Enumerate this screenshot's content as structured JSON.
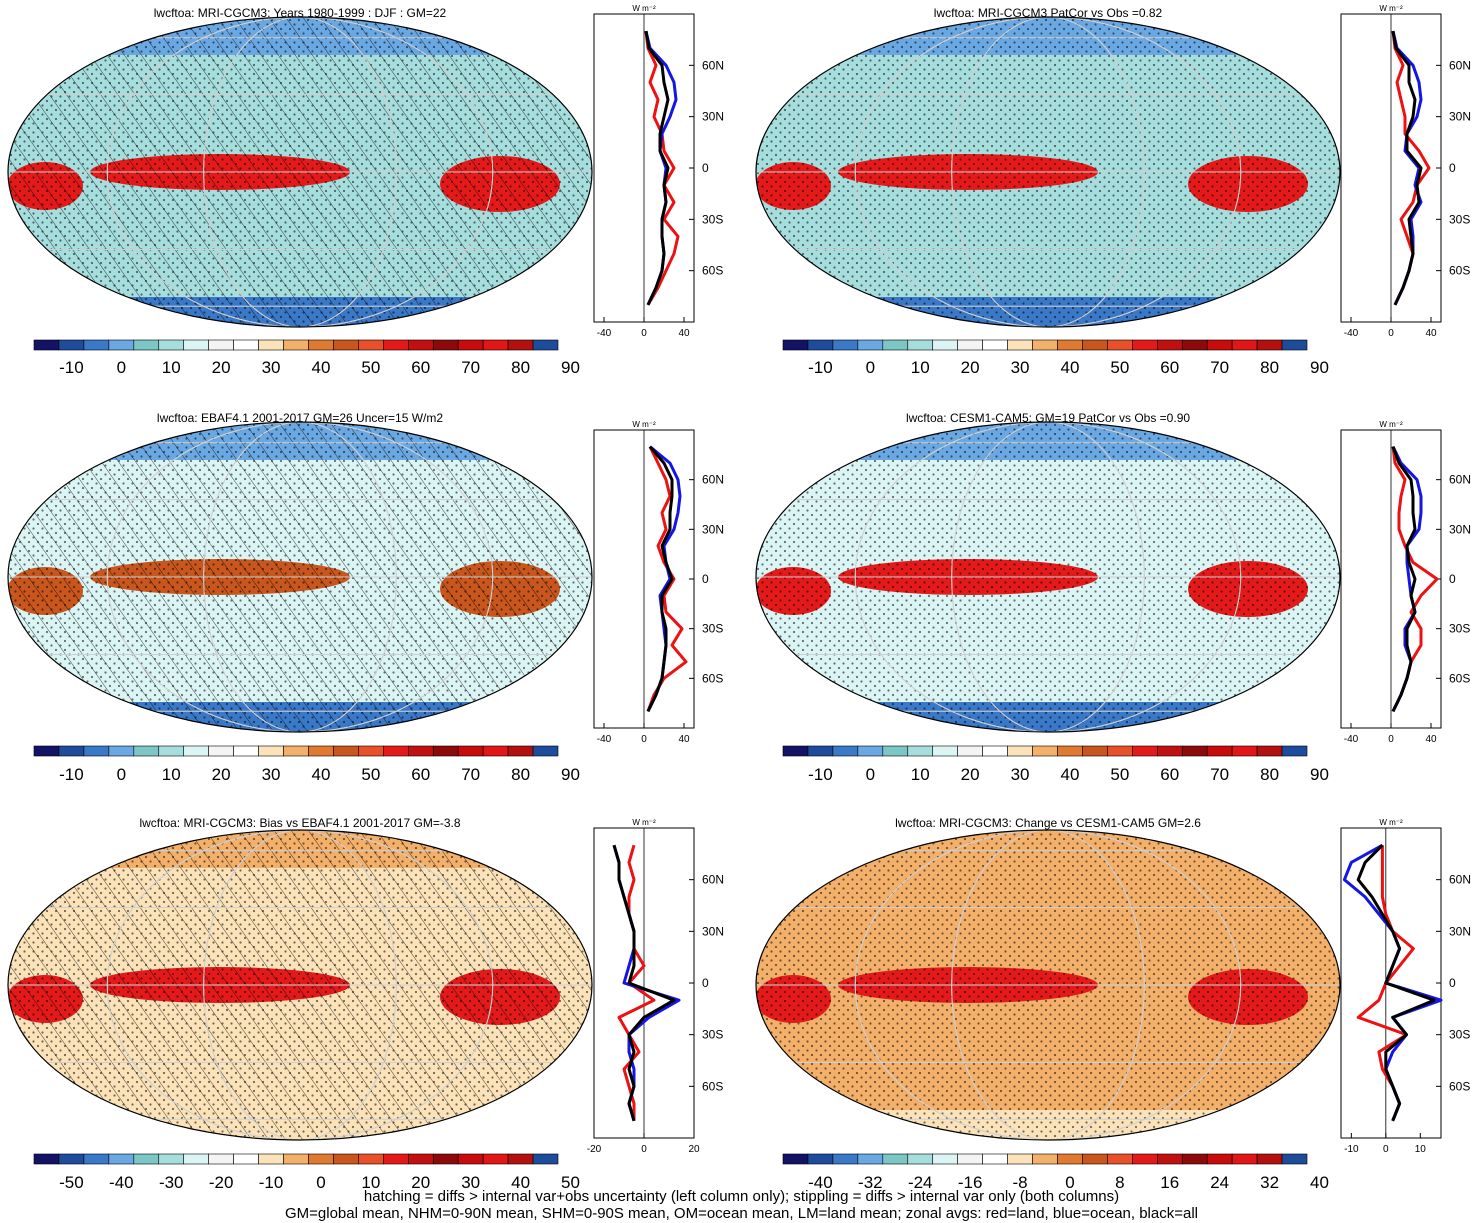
{
  "colors": {
    "fill_levels": [
      "#121266",
      "#1e4c9c",
      "#3a78c8",
      "#6aa8e4",
      "#7cc6c6",
      "#a6dede",
      "#dbf5f5",
      "#f4f4f4",
      "#ffffff",
      "#fbe2b8",
      "#f3b06a",
      "#e07a30",
      "#c9561c",
      "#e8502a",
      "#e41a1a",
      "#c21010",
      "#8e0a0a",
      "#c80c0c",
      "#e21616",
      "#b41010",
      "#1e4c9c"
    ],
    "zonal_land": "#ee1111",
    "zonal_ocean": "#1515e6",
    "zonal_all": "#000000"
  },
  "panels": [
    {
      "title": "lwcftoa: MRI-CGCM3: Years 1980-1999 : DJF : GM=22",
      "colorbar_ticks": [
        "-10",
        "0",
        "10",
        "20",
        "30",
        "40",
        "50",
        "60",
        "70",
        "80",
        "90"
      ],
      "zonal_xticks": [
        "-40",
        "0",
        "40"
      ],
      "zonal_xlim": [
        -50,
        50
      ]
    },
    {
      "title": "lwcftoa: MRI-CGCM3 PatCor vs Obs =0.82",
      "colorbar_ticks": [
        "-10",
        "0",
        "10",
        "20",
        "30",
        "40",
        "50",
        "60",
        "70",
        "80",
        "90"
      ],
      "zonal_xticks": [
        "-40",
        "0",
        "40"
      ],
      "zonal_xlim": [
        -50,
        50
      ]
    },
    {
      "title": "lwcftoa: EBAF4.1 2001-2017 GM=26 Uncer=15 W/m2",
      "colorbar_ticks": [
        "-10",
        "0",
        "10",
        "20",
        "30",
        "40",
        "50",
        "60",
        "70",
        "80",
        "90"
      ],
      "zonal_xticks": [
        "-40",
        "0",
        "40"
      ],
      "zonal_xlim": [
        -50,
        50
      ]
    },
    {
      "title": "lwcftoa: CESM1-CAM5: GM=19 PatCor vs Obs =0.90",
      "colorbar_ticks": [
        "-10",
        "0",
        "10",
        "20",
        "30",
        "40",
        "50",
        "60",
        "70",
        "80",
        "90"
      ],
      "zonal_xticks": [
        "-40",
        "0",
        "40"
      ],
      "zonal_xlim": [
        -50,
        50
      ]
    },
    {
      "title": "lwcftoa: MRI-CGCM3: Bias vs EBAF4.1 2001-2017 GM=-3.8",
      "colorbar_ticks": [
        "-50",
        "-40",
        "-30",
        "-20",
        "-10",
        "0",
        "10",
        "20",
        "30",
        "40",
        "50"
      ],
      "zonal_xticks": [
        "-20",
        "0",
        "20"
      ],
      "zonal_xlim": [
        -20,
        20
      ]
    },
    {
      "title": "lwcftoa: MRI-CGCM3: Change vs CESM1-CAM5 GM=2.6",
      "colorbar_ticks": [
        "-40",
        "-32",
        "-24",
        "-16",
        "-8",
        "0",
        "8",
        "16",
        "24",
        "32",
        "40"
      ],
      "zonal_xticks": [
        "-10",
        "0",
        "10"
      ],
      "zonal_xlim": [
        -13,
        16
      ]
    }
  ],
  "zonal_unit": "W m⁻²",
  "lat_ticks": [
    "60N",
    "30N",
    "0",
    "30S",
    "60S"
  ],
  "chart_data": [
    {
      "type": "line",
      "x_label": "W m-2",
      "y_ticks": [
        "60N",
        "30N",
        "0",
        "30S",
        "60S"
      ],
      "series": [
        {
          "name": "red=land",
          "lat": [
            80,
            70,
            60,
            50,
            40,
            30,
            20,
            10,
            0,
            -10,
            -20,
            -30,
            -40,
            -50,
            -60,
            -70,
            -80
          ],
          "values": [
            2,
            4,
            12,
            6,
            14,
            10,
            18,
            20,
            30,
            20,
            30,
            20,
            34,
            30,
            22,
            14,
            4
          ]
        },
        {
          "name": "blue=ocean",
          "lat": [
            80,
            70,
            60,
            50,
            40,
            30,
            20,
            10,
            0,
            -10,
            -20,
            -30,
            -40,
            -50,
            -60,
            -70,
            -80
          ],
          "values": [
            2,
            6,
            22,
            30,
            32,
            26,
            18,
            16,
            22,
            20,
            22,
            18,
            18,
            20,
            18,
            12,
            4
          ]
        },
        {
          "name": "black=all",
          "lat": [
            80,
            70,
            60,
            50,
            40,
            30,
            20,
            10,
            0,
            -10,
            -20,
            -30,
            -40,
            -50,
            -60,
            -70,
            -80
          ],
          "values": [
            2,
            5,
            18,
            20,
            24,
            20,
            16,
            16,
            24,
            20,
            22,
            18,
            18,
            20,
            18,
            12,
            4
          ]
        }
      ]
    },
    {
      "type": "line",
      "x_label": "W m-2",
      "y_ticks": [
        "60N",
        "30N",
        "0",
        "30S",
        "60S"
      ],
      "series": [
        {
          "name": "red=land",
          "lat": [
            80,
            70,
            60,
            50,
            40,
            30,
            20,
            10,
            0,
            -10,
            -20,
            -30,
            -40,
            -50,
            -60,
            -70,
            -80
          ],
          "values": [
            2,
            4,
            12,
            6,
            10,
            14,
            14,
            28,
            38,
            26,
            22,
            10,
            16,
            22,
            18,
            12,
            4
          ]
        },
        {
          "name": "blue=ocean",
          "lat": [
            80,
            70,
            60,
            50,
            40,
            30,
            20,
            10,
            0,
            -10,
            -20,
            -30,
            -40,
            -50,
            -60,
            -70,
            -80
          ],
          "values": [
            2,
            6,
            22,
            28,
            30,
            26,
            16,
            14,
            28,
            24,
            30,
            20,
            22,
            22,
            18,
            12,
            4
          ]
        },
        {
          "name": "black=all",
          "lat": [
            80,
            70,
            60,
            50,
            40,
            30,
            20,
            10,
            0,
            -10,
            -20,
            -30,
            -40,
            -50,
            -60,
            -70,
            -80
          ],
          "values": [
            2,
            5,
            18,
            18,
            24,
            22,
            16,
            16,
            30,
            26,
            28,
            18,
            20,
            22,
            18,
            12,
            4
          ]
        }
      ]
    },
    {
      "type": "line",
      "x_label": "W m-2",
      "y_ticks": [
        "60N",
        "30N",
        "0",
        "30S",
        "60S"
      ],
      "series": [
        {
          "name": "red=land",
          "lat": [
            80,
            70,
            60,
            50,
            40,
            30,
            20,
            10,
            0,
            -10,
            -20,
            -30,
            -40,
            -50,
            -60,
            -70,
            -80
          ],
          "values": [
            6,
            14,
            22,
            26,
            18,
            22,
            14,
            20,
            30,
            20,
            22,
            38,
            28,
            42,
            20,
            10,
            4
          ]
        },
        {
          "name": "blue=ocean",
          "lat": [
            80,
            70,
            60,
            50,
            40,
            30,
            20,
            10,
            0,
            -10,
            -20,
            -30,
            -40,
            -50,
            -60,
            -70,
            -80
          ],
          "values": [
            6,
            26,
            34,
            36,
            34,
            30,
            20,
            22,
            26,
            16,
            18,
            20,
            22,
            20,
            18,
            12,
            4
          ]
        },
        {
          "name": "black=all",
          "lat": [
            80,
            70,
            60,
            50,
            40,
            30,
            20,
            10,
            0,
            -10,
            -20,
            -30,
            -40,
            -50,
            -60,
            -70,
            -80
          ],
          "values": [
            6,
            20,
            28,
            28,
            26,
            26,
            18,
            22,
            28,
            18,
            18,
            22,
            22,
            20,
            18,
            12,
            4
          ]
        }
      ]
    },
    {
      "type": "line",
      "x_label": "W m-2",
      "y_ticks": [
        "60N",
        "30N",
        "0",
        "30S",
        "60S"
      ],
      "series": [
        {
          "name": "red=land",
          "lat": [
            80,
            70,
            60,
            50,
            40,
            30,
            20,
            10,
            0,
            -10,
            -20,
            -30,
            -40,
            -50,
            -60,
            -70,
            -80
          ],
          "values": [
            2,
            4,
            14,
            10,
            8,
            8,
            14,
            22,
            46,
            30,
            20,
            30,
            30,
            20,
            16,
            10,
            2
          ]
        },
        {
          "name": "blue=ocean",
          "lat": [
            80,
            70,
            60,
            50,
            40,
            30,
            20,
            10,
            0,
            -10,
            -20,
            -30,
            -40,
            -50,
            -60,
            -70,
            -80
          ],
          "values": [
            2,
            10,
            26,
            30,
            30,
            28,
            16,
            16,
            18,
            20,
            24,
            14,
            14,
            20,
            16,
            10,
            2
          ]
        },
        {
          "name": "black=all",
          "lat": [
            80,
            70,
            60,
            50,
            40,
            30,
            20,
            10,
            0,
            -10,
            -20,
            -30,
            -40,
            -50,
            -60,
            -70,
            -80
          ],
          "values": [
            2,
            8,
            20,
            22,
            22,
            24,
            16,
            18,
            24,
            20,
            24,
            16,
            16,
            20,
            16,
            10,
            2
          ]
        }
      ]
    },
    {
      "type": "line",
      "x_label": "W m-2",
      "y_ticks": [
        "60N",
        "30N",
        "0",
        "30S",
        "60S"
      ],
      "series": [
        {
          "name": "red=land",
          "lat": [
            80,
            70,
            60,
            50,
            40,
            30,
            20,
            10,
            0,
            -10,
            -20,
            -30,
            -40,
            -50,
            -60,
            -70,
            -80
          ],
          "values": [
            -4,
            -6,
            -4,
            -6,
            -6,
            -4,
            -4,
            0,
            -6,
            4,
            -10,
            -6,
            -2,
            -8,
            -6,
            -4,
            -4
          ]
        },
        {
          "name": "blue=ocean",
          "lat": [
            80,
            70,
            60,
            50,
            40,
            30,
            20,
            10,
            0,
            -10,
            -20,
            -30,
            -40,
            -50,
            -60,
            -70,
            -80
          ],
          "values": [
            -12,
            -10,
            -10,
            -8,
            -6,
            -4,
            -4,
            -6,
            -8,
            14,
            2,
            -6,
            -6,
            -4,
            -4,
            -6,
            -4
          ]
        },
        {
          "name": "black=all",
          "lat": [
            80,
            70,
            60,
            50,
            40,
            30,
            20,
            10,
            0,
            -10,
            -20,
            -30,
            -40,
            -50,
            -60,
            -70,
            -80
          ],
          "values": [
            -12,
            -10,
            -10,
            -8,
            -6,
            -4,
            -4,
            -4,
            -6,
            12,
            0,
            -6,
            -4,
            -6,
            -4,
            -6,
            -4
          ]
        }
      ]
    },
    {
      "type": "line",
      "x_label": "W m-2",
      "y_ticks": [
        "60N",
        "30N",
        "0",
        "30S",
        "60S"
      ],
      "series": [
        {
          "name": "red=land",
          "lat": [
            80,
            70,
            60,
            50,
            40,
            30,
            20,
            10,
            0,
            -10,
            -20,
            -30,
            -40,
            -50,
            -60,
            -70,
            -80
          ],
          "values": [
            -1,
            -1,
            -1,
            -1,
            0,
            2,
            8,
            4,
            0,
            -2,
            -8,
            6,
            -2,
            -1,
            2,
            4,
            2
          ]
        },
        {
          "name": "blue=ocean",
          "lat": [
            80,
            70,
            60,
            50,
            40,
            30,
            20,
            10,
            0,
            -10,
            -20,
            -30,
            -40,
            -50,
            -60,
            -70,
            -80
          ],
          "values": [
            -1,
            -10,
            -12,
            -6,
            -2,
            2,
            4,
            2,
            0,
            16,
            2,
            6,
            2,
            0,
            2,
            4,
            2
          ]
        },
        {
          "name": "black=all",
          "lat": [
            80,
            70,
            60,
            50,
            40,
            30,
            20,
            10,
            0,
            -10,
            -20,
            -30,
            -40,
            -50,
            -60,
            -70,
            -80
          ],
          "values": [
            -1,
            -6,
            -8,
            -4,
            -1,
            2,
            4,
            2,
            0,
            14,
            2,
            6,
            0,
            0,
            2,
            4,
            2
          ]
        }
      ]
    }
  ],
  "footer": {
    "line1": "hatching = diffs > internal var+obs uncertainty (left column only); stippling = diffs > internal var only (both columns)",
    "line2": "GM=global mean, NHM=0-90N mean, SHM=0-90S mean, OM=ocean mean, LM=land mean; zonal avgs: red=land, blue=ocean, black=all"
  }
}
